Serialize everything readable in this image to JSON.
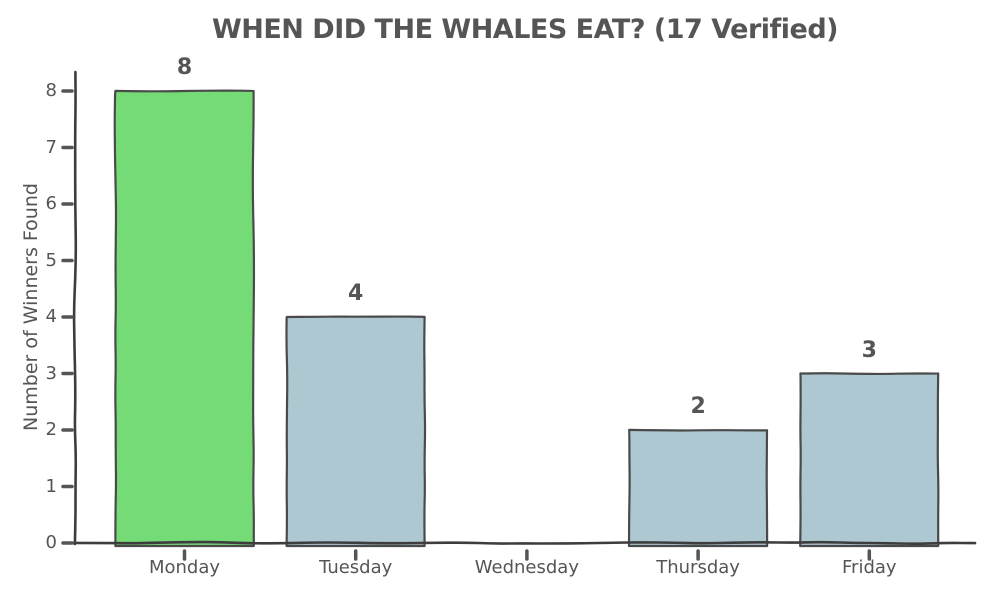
{
  "chart_data": {
    "type": "bar",
    "title": "WHEN DID THE WHALES EAT? (17 Verified)",
    "xlabel": "",
    "ylabel": "Number of Winners Found",
    "categories": [
      "Monday",
      "Tuesday",
      "Wednesday",
      "Thursday",
      "Friday"
    ],
    "values": [
      8,
      4,
      0,
      2,
      3
    ],
    "bar_labels": [
      "8",
      "4",
      "",
      "2",
      "3"
    ],
    "yticks": [
      0,
      1,
      2,
      3,
      4,
      5,
      6,
      7,
      8
    ],
    "ylim": [
      0,
      8
    ],
    "grid": false,
    "legend": null,
    "style": "xkcd-sketch",
    "colors": {
      "highlight_bar": "#74DB77",
      "default_bar": "#AEC8D2",
      "bar_colors": [
        "#74DB77",
        "#AEC8D2",
        "#AEC8D2",
        "#AEC8D2",
        "#AEC8D2"
      ],
      "edge": "#4a4a4a",
      "axis": "#3d3d3d",
      "tick": "#555555",
      "text": "#555555",
      "background": "#ffffff"
    }
  }
}
